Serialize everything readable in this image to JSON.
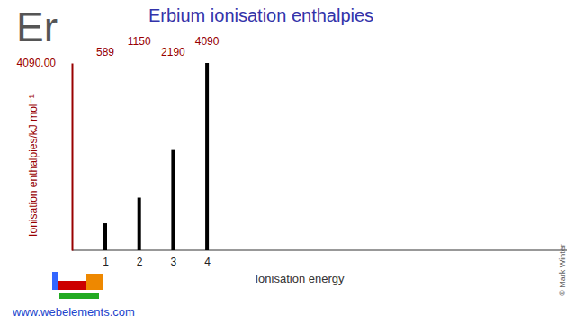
{
  "chart_data": {
    "type": "bar",
    "title": "Erbium ionisation enthalpies",
    "symbol": "Er",
    "x_label": "Ionisation energy",
    "y_label": "Ionisation enthalpies/kJ mol⁻¹",
    "categories": [
      "1",
      "2",
      "3",
      "4"
    ],
    "values": [
      589,
      1150,
      2190,
      4090
    ],
    "color": "#000000",
    "ylim": [
      0,
      4090
    ],
    "yticks": [
      {
        "value": 4090,
        "label": "4090.00"
      }
    ],
    "data_labels": true,
    "grid": false,
    "source": "www.webelements.com",
    "credit": "© Mark Winter"
  }
}
